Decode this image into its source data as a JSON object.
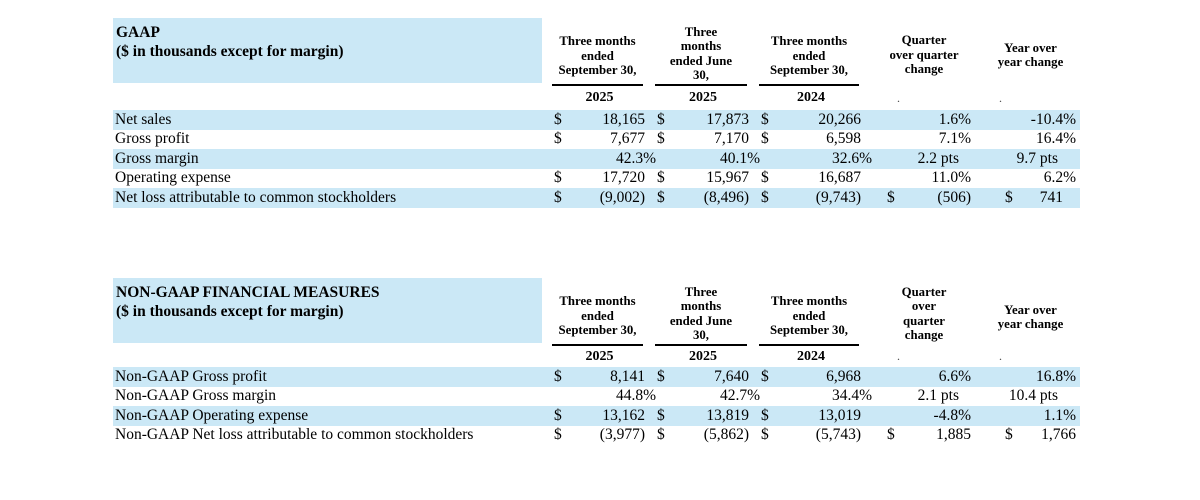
{
  "colors": {
    "stripe": "#cbe8f6",
    "text": "#000000"
  },
  "tables": [
    {
      "id": "gaap",
      "title_line1": "GAAP",
      "title_line2": "($ in thousands except for margin)",
      "columns": [
        {
          "header": "Three months\nended\nSeptember 30,",
          "year": "2025"
        },
        {
          "header": "Three\nmonths\nended June\n30,",
          "year": "2025"
        },
        {
          "header": "Three months\nended\nSeptember 30,",
          "year": "2024"
        },
        {
          "header": "Quarter\nover quarter\nchange",
          "year": "."
        },
        {
          "header": "Year over\nyear change",
          "year": "."
        }
      ],
      "rows": [
        {
          "label": "Net sales",
          "cells": [
            {
              "d": "$",
              "v": "18,165"
            },
            {
              "d": "$",
              "v": "17,873"
            },
            {
              "d": "$",
              "v": "20,266"
            },
            {
              "d": "",
              "v": "1.6%"
            },
            {
              "d": "",
              "v": "-10.4%"
            }
          ]
        },
        {
          "label": "Gross profit",
          "cells": [
            {
              "d": "$",
              "v": "7,677"
            },
            {
              "d": "$",
              "v": "7,170"
            },
            {
              "d": "$",
              "v": "6,598"
            },
            {
              "d": "",
              "v": "7.1%"
            },
            {
              "d": "",
              "v": "16.4%"
            }
          ]
        },
        {
          "label": "Gross margin",
          "cells": [
            {
              "d": "",
              "v": "42.3%"
            },
            {
              "d": "",
              "v": "40.1%"
            },
            {
              "d": "",
              "v": "32.6%"
            },
            {
              "d": "",
              "v": "2.2 pts"
            },
            {
              "d": "",
              "v": "9.7 pts"
            }
          ]
        },
        {
          "label": "Operating expense",
          "cells": [
            {
              "d": "$",
              "v": "17,720"
            },
            {
              "d": "$",
              "v": "15,967"
            },
            {
              "d": "$",
              "v": "16,687"
            },
            {
              "d": "",
              "v": "11.0%"
            },
            {
              "d": "",
              "v": "6.2%"
            }
          ]
        },
        {
          "label": "Net loss attributable to common stockholders",
          "cells": [
            {
              "d": "$",
              "v": "(9,002)"
            },
            {
              "d": "$",
              "v": "(8,496)"
            },
            {
              "d": "$",
              "v": "(9,743)"
            },
            {
              "d": "$",
              "v": "(506)"
            },
            {
              "d": "$",
              "v": "741"
            }
          ]
        }
      ]
    },
    {
      "id": "non-gaap",
      "title_line1": "NON-GAAP FINANCIAL MEASURES",
      "title_line2": "($ in thousands except for margin)",
      "columns": [
        {
          "header": "Three months\nended\nSeptember 30,",
          "year": "2025"
        },
        {
          "header": "Three\nmonths\nended June\n30,",
          "year": "2025"
        },
        {
          "header": "Three months\nended\nSeptember 30,",
          "year": "2024"
        },
        {
          "header": "Quarter\nover\nquarter\nchange",
          "year": "."
        },
        {
          "header": "Year over\nyear change",
          "year": "."
        }
      ],
      "rows": [
        {
          "label": "Non-GAAP Gross profit",
          "cells": [
            {
              "d": "$",
              "v": "8,141"
            },
            {
              "d": "$",
              "v": "7,640"
            },
            {
              "d": "$",
              "v": "6,968"
            },
            {
              "d": "",
              "v": "6.6%"
            },
            {
              "d": "",
              "v": "16.8%"
            }
          ]
        },
        {
          "label": "Non-GAAP Gross margin",
          "cells": [
            {
              "d": "",
              "v": "44.8%"
            },
            {
              "d": "",
              "v": "42.7%"
            },
            {
              "d": "",
              "v": "34.4%"
            },
            {
              "d": "",
              "v": "2.1 pts"
            },
            {
              "d": "",
              "v": "10.4 pts"
            }
          ]
        },
        {
          "label": "Non-GAAP Operating expense",
          "cells": [
            {
              "d": "$",
              "v": "13,162"
            },
            {
              "d": "$",
              "v": "13,819"
            },
            {
              "d": "$",
              "v": "13,019"
            },
            {
              "d": "",
              "v": "-4.8%"
            },
            {
              "d": "",
              "v": "1.1%"
            }
          ]
        },
        {
          "label": "Non-GAAP Net loss attributable to common stockholders",
          "cells": [
            {
              "d": "$",
              "v": "(3,977)"
            },
            {
              "d": "$",
              "v": "(5,862)"
            },
            {
              "d": "$",
              "v": "(5,743)"
            },
            {
              "d": "$",
              "v": "1,885"
            },
            {
              "d": "$",
              "v": "1,766"
            }
          ]
        }
      ]
    }
  ]
}
